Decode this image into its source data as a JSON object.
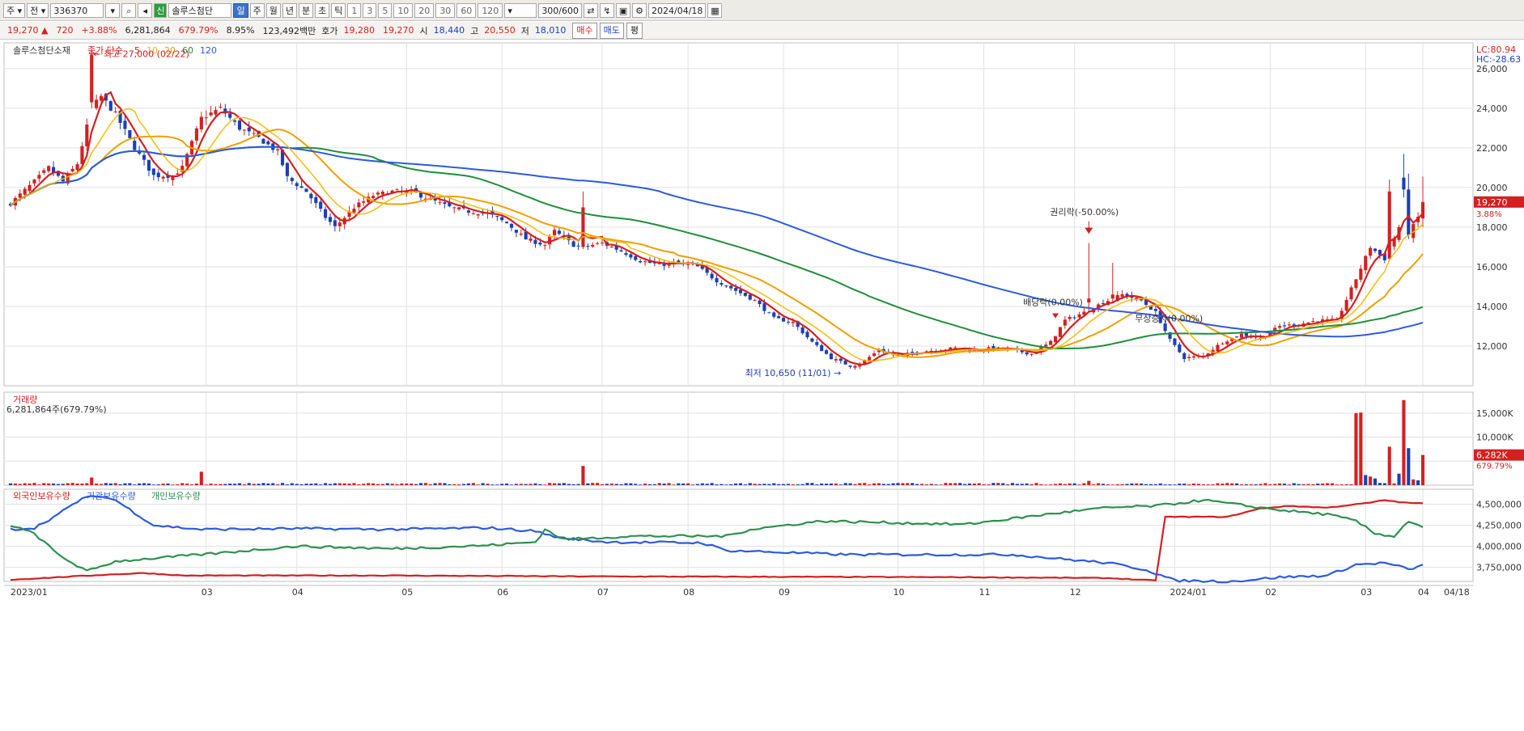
{
  "toolbar": {
    "type_select": "주",
    "all_select": "전",
    "code": "336370",
    "badge": "신",
    "name": "솔루스첨단",
    "periods": [
      "일",
      "주",
      "월",
      "년",
      "분",
      "초",
      "틱"
    ],
    "active_period": "일",
    "intervals": [
      "1",
      "3",
      "5",
      "10",
      "20",
      "30",
      "60",
      "120"
    ],
    "count": "300/600",
    "date": "2024/04/18"
  },
  "quote": {
    "price": "19,270",
    "change": "720",
    "change_rate": "+3.88%",
    "volume": "6,281,864",
    "volume_rate": "679.79%",
    "turnover_rate": "8.95%",
    "amount": "123,492백만",
    "ask_label": "호가",
    "ask": "19,280",
    "bid": "19,270",
    "open_label": "시",
    "open": "18,440",
    "high_label": "고",
    "high": "20,550",
    "low_label": "저",
    "low": "18,010",
    "buy_button": "매수",
    "sell_button": "매도",
    "eval_button": "평"
  },
  "colors": {
    "up": "#d42020",
    "down": "#1d3fb5",
    "ma5": "#d42020",
    "ma20": "#f0a000",
    "ma60": "#1f8f3a",
    "ma120": "#2d5ae0",
    "foreign": "#d42020",
    "institution": "#2d5ae0",
    "individual": "#2d9150",
    "grid": "#e1e1e1"
  },
  "chart_data": [
    {
      "type": "candlestick",
      "title": "솔루스첨단소재",
      "legend_prefix": "종가 단순",
      "ma_periods": [
        "5",
        "10",
        "20",
        "60",
        "120"
      ],
      "ylim": [
        10000,
        27300
      ],
      "yticks": [
        12000,
        14000,
        16000,
        18000,
        20000,
        22000,
        24000,
        26000
      ],
      "ytick_labels": [
        "12,000",
        "14,000",
        "16,000",
        "18,000",
        "20,000",
        "22,000",
        "24,000",
        "26,000"
      ],
      "xlabels": [
        "2023/01",
        "03",
        "04",
        "05",
        "06",
        "07",
        "08",
        "09",
        "10",
        "11",
        "12",
        "2024/01",
        "02",
        "03",
        "04",
        "04/18"
      ],
      "last_price_label": "19,270",
      "last_rate_label": "3.88%",
      "lc_label": "LC:80.94",
      "hc_label": "HC:-28.63",
      "annotations": {
        "high": "최고 27,000 (02/22)",
        "low": "최저 10,650 (11/01)",
        "rights": "권리락(-50.00%)",
        "dividend": "배당락(0.00%)",
        "bonus": "무상증자(0.00%)"
      },
      "close_anchors": [
        [
          0,
          19200
        ],
        [
          5,
          20300
        ],
        [
          8,
          21000
        ],
        [
          11,
          20300
        ],
        [
          14,
          21200
        ],
        [
          17,
          24000
        ],
        [
          19,
          24600
        ],
        [
          22,
          23700
        ],
        [
          26,
          22000
        ],
        [
          30,
          20600
        ],
        [
          34,
          20600
        ],
        [
          36,
          21000
        ],
        [
          40,
          23500
        ],
        [
          44,
          24000
        ],
        [
          48,
          23000
        ],
        [
          52,
          22500
        ],
        [
          56,
          21800
        ],
        [
          58,
          20500
        ],
        [
          62,
          19800
        ],
        [
          66,
          18500
        ],
        [
          68,
          18000
        ],
        [
          72,
          19000
        ],
        [
          76,
          19600
        ],
        [
          80,
          19800
        ],
        [
          84,
          19800
        ],
        [
          88,
          19400
        ],
        [
          92,
          19000
        ],
        [
          96,
          18800
        ],
        [
          100,
          18700
        ],
        [
          104,
          18200
        ],
        [
          108,
          17400
        ],
        [
          112,
          17100
        ],
        [
          114,
          17800
        ],
        [
          118,
          17100
        ],
        [
          120,
          17000
        ],
        [
          124,
          17200
        ],
        [
          128,
          16800
        ],
        [
          132,
          16300
        ],
        [
          136,
          16100
        ],
        [
          140,
          16200
        ],
        [
          144,
          16000
        ],
        [
          148,
          15300
        ],
        [
          152,
          14800
        ],
        [
          156,
          14300
        ],
        [
          160,
          13400
        ],
        [
          164,
          13200
        ],
        [
          168,
          12200
        ],
        [
          172,
          11400
        ],
        [
          176,
          11000
        ],
        [
          178,
          11100
        ],
        [
          182,
          11800
        ],
        [
          186,
          11500
        ],
        [
          190,
          11700
        ],
        [
          194,
          11800
        ],
        [
          198,
          11900
        ],
        [
          202,
          11800
        ],
        [
          206,
          11900
        ],
        [
          210,
          11800
        ],
        [
          214,
          11600
        ],
        [
          218,
          12200
        ],
        [
          221,
          13300
        ],
        [
          225,
          13700
        ],
        [
          229,
          14200
        ],
        [
          233,
          14600
        ],
        [
          237,
          14300
        ],
        [
          240,
          13700
        ],
        [
          243,
          12300
        ],
        [
          246,
          11400
        ],
        [
          250,
          11500
        ],
        [
          254,
          12200
        ],
        [
          258,
          12600
        ],
        [
          262,
          12400
        ],
        [
          266,
          13000
        ],
        [
          270,
          13100
        ],
        [
          274,
          13300
        ],
        [
          278,
          13300
        ],
        [
          282,
          15400
        ],
        [
          285,
          17000
        ],
        [
          288,
          16400
        ],
        [
          291,
          18000
        ],
        [
          293,
          17600
        ],
        [
          295,
          18500
        ],
        [
          296,
          19270
        ]
      ],
      "special_candles": [
        {
          "i": 17,
          "open": 24300,
          "close": 26700,
          "high": 27000,
          "low": 24000
        },
        {
          "i": 120,
          "open": 17000,
          "close": 19000,
          "high": 19800,
          "low": 16900
        },
        {
          "i": 226,
          "open": 14200,
          "close": 14400,
          "high": 17200,
          "low": 13700
        },
        {
          "i": 231,
          "open": 14400,
          "close": 14600,
          "high": 16200,
          "low": 14200
        },
        {
          "i": 289,
          "open": 16400,
          "close": 19800,
          "high": 20400,
          "low": 16300
        },
        {
          "i": 292,
          "open": 20500,
          "close": 19900,
          "high": 21700,
          "low": 19500
        },
        {
          "i": 293,
          "open": 19900,
          "close": 17600,
          "high": 20700,
          "low": 17400
        },
        {
          "i": 296,
          "open": 18440,
          "close": 19270,
          "high": 20550,
          "low": 18010
        }
      ]
    },
    {
      "type": "bar",
      "title": "거래량",
      "summary": "6,281,864주(679.79%)",
      "ylim": [
        0,
        18000
      ],
      "yticks": [
        5000,
        10000,
        15000
      ],
      "ytick_labels": [
        "",
        "10,000K",
        "15,000K"
      ],
      "last_label": "6,282K",
      "last_rate_label": "679.79%",
      "unit": "K",
      "base_volume": 300,
      "spikes": [
        {
          "i": 17,
          "v": 1600,
          "up": true
        },
        {
          "i": 40,
          "v": 2800,
          "up": true
        },
        {
          "i": 120,
          "v": 4000,
          "up": true
        },
        {
          "i": 226,
          "v": 900,
          "up": true
        },
        {
          "i": 282,
          "v": 15000,
          "up": true
        },
        {
          "i": 283,
          "v": 15100,
          "up": true
        },
        {
          "i": 284,
          "v": 2100,
          "up": false
        },
        {
          "i": 285,
          "v": 1800,
          "up": true
        },
        {
          "i": 286,
          "v": 1400,
          "up": false
        },
        {
          "i": 289,
          "v": 8000,
          "up": true
        },
        {
          "i": 291,
          "v": 2400,
          "up": false
        },
        {
          "i": 292,
          "v": 17700,
          "up": true
        },
        {
          "i": 293,
          "v": 7700,
          "up": false
        },
        {
          "i": 294,
          "v": 1200,
          "up": true
        },
        {
          "i": 295,
          "v": 1000,
          "up": false
        },
        {
          "i": 296,
          "v": 6282,
          "up": true
        }
      ]
    },
    {
      "type": "line",
      "series_labels": [
        "외국인보유수량",
        "기관보유수량",
        "개인보유수량"
      ],
      "ylim": [
        3580000,
        4680000
      ],
      "yticks": [
        3750000,
        4000000,
        4250000,
        4500000
      ],
      "ytick_labels": [
        "3,750,000",
        "4,000,000",
        "4,250,000",
        "4,500,000"
      ],
      "series": [
        {
          "name": "외국인보유수량",
          "anchors": [
            [
              0,
              3600000
            ],
            [
              10,
              3630000
            ],
            [
              20,
              3660000
            ],
            [
              28,
              3680000
            ],
            [
              36,
              3650000
            ],
            [
              50,
              3650000
            ],
            [
              80,
              3650000
            ],
            [
              120,
              3640000
            ],
            [
              200,
              3630000
            ],
            [
              230,
              3620000
            ],
            [
              240,
              3590000
            ],
            [
              242,
              4350000
            ],
            [
              255,
              4350000
            ],
            [
              262,
              4450000
            ],
            [
              268,
              4480000
            ],
            [
              276,
              4460000
            ],
            [
              282,
              4500000
            ],
            [
              285,
              4520000
            ],
            [
              288,
              4550000
            ],
            [
              292,
              4520000
            ],
            [
              296,
              4510000
            ]
          ]
        },
        {
          "name": "기관보유수량",
          "anchors": [
            [
              0,
              4200000
            ],
            [
              5,
              4220000
            ],
            [
              10,
              4380000
            ],
            [
              15,
              4570000
            ],
            [
              19,
              4600000
            ],
            [
              22,
              4550000
            ],
            [
              30,
              4250000
            ],
            [
              40,
              4200000
            ],
            [
              60,
              4210000
            ],
            [
              80,
              4200000
            ],
            [
              100,
              4220000
            ],
            [
              110,
              4180000
            ],
            [
              115,
              4100000
            ],
            [
              125,
              4050000
            ],
            [
              145,
              4040000
            ],
            [
              150,
              3950000
            ],
            [
              175,
              3900000
            ],
            [
              210,
              3900000
            ],
            [
              230,
              3800000
            ],
            [
              238,
              3720000
            ],
            [
              244,
              3590000
            ],
            [
              256,
              3580000
            ],
            [
              266,
              3630000
            ],
            [
              276,
              3650000
            ],
            [
              282,
              3780000
            ],
            [
              288,
              3800000
            ],
            [
              291,
              3760000
            ],
            [
              293,
              3720000
            ],
            [
              296,
              3770000
            ]
          ]
        },
        {
          "name": "개인보유수량",
          "anchors": [
            [
              0,
              4250000
            ],
            [
              5,
              4150000
            ],
            [
              10,
              3900000
            ],
            [
              16,
              3700000
            ],
            [
              22,
              3820000
            ],
            [
              40,
              3900000
            ],
            [
              60,
              4000000
            ],
            [
              80,
              3970000
            ],
            [
              100,
              4010000
            ],
            [
              110,
              4050000
            ],
            [
              112,
              4200000
            ],
            [
              116,
              4080000
            ],
            [
              130,
              4120000
            ],
            [
              150,
              4120000
            ],
            [
              155,
              4200000
            ],
            [
              170,
              4300000
            ],
            [
              200,
              4260000
            ],
            [
              220,
              4400000
            ],
            [
              230,
              4460000
            ],
            [
              240,
              4480000
            ],
            [
              250,
              4550000
            ],
            [
              262,
              4460000
            ],
            [
              268,
              4420000
            ],
            [
              276,
              4380000
            ],
            [
              282,
              4300000
            ],
            [
              286,
              4150000
            ],
            [
              290,
              4120000
            ],
            [
              293,
              4300000
            ],
            [
              296,
              4230000
            ]
          ]
        }
      ]
    }
  ]
}
